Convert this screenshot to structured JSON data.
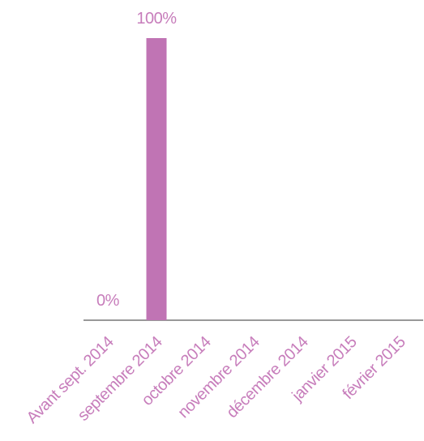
{
  "chart_data": {
    "type": "bar",
    "categories": [
      "Avant sept. 2014",
      "septembre 2014",
      "octobre 2014",
      "novembre 2014",
      "décembre 2014",
      "janvier  2015",
      "février 2015"
    ],
    "values": [
      0,
      100,
      null,
      null,
      null,
      null,
      null
    ],
    "value_labels": [
      "0%",
      "100%",
      null,
      null,
      null,
      null,
      null
    ],
    "color": "#c074b4",
    "label_color": "#c77dbb",
    "ylim": [
      0,
      100
    ]
  }
}
